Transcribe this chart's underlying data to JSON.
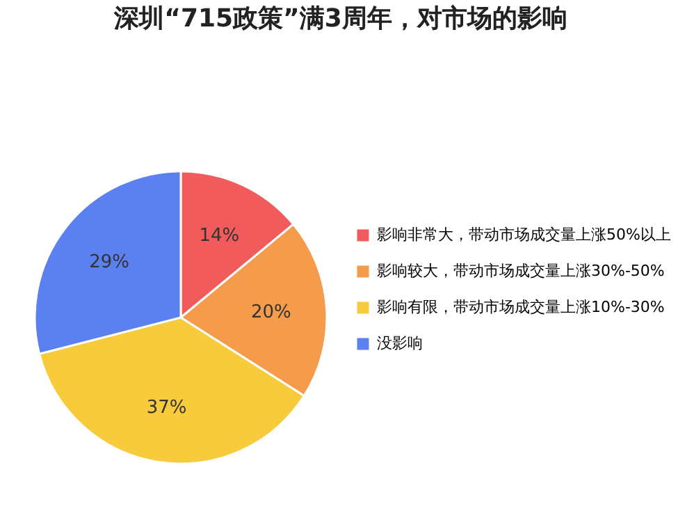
{
  "chart_data": {
    "type": "pie",
    "title": "深圳“715政策”满3周年，对市场的影响",
    "categories": [
      "影响非常大，带动市场成交量上涨50%以上",
      "影响较大，带动市场成交量上涨30%-50%",
      "影响有限，带动市场成交量上涨10%-30%",
      "没影响"
    ],
    "values": [
      14,
      20,
      37,
      29
    ],
    "colors": [
      "#f25b5b",
      "#f59b4c",
      "#f8cb3d",
      "#5b80ef"
    ],
    "value_labels": [
      "14%",
      "20%",
      "37%",
      "29%"
    ],
    "legend": "right"
  }
}
